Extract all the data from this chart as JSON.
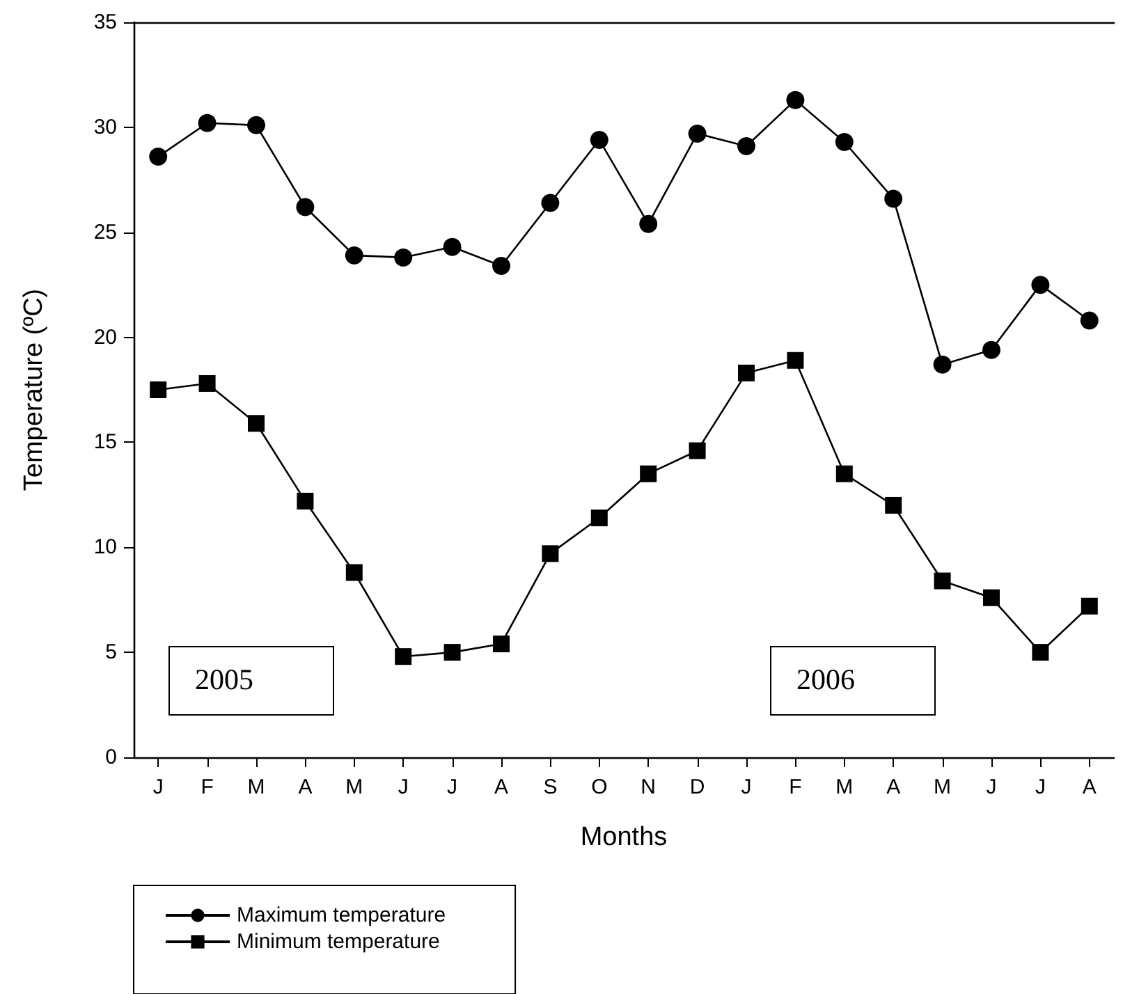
{
  "chart_data": {
    "type": "line",
    "xlabel": "Months",
    "ylabel": "Temperature (ºC)",
    "categories": [
      "J",
      "F",
      "M",
      "A",
      "M",
      "J",
      "J",
      "A",
      "S",
      "O",
      "N",
      "D",
      "J",
      "F",
      "M",
      "A",
      "M",
      "J",
      "J",
      "A"
    ],
    "series": [
      {
        "name": "Maximum temperature",
        "color": "#000000",
        "marker": "circle",
        "values": [
          28.6,
          30.2,
          30.1,
          26.2,
          23.9,
          23.8,
          24.3,
          23.4,
          26.4,
          29.4,
          25.4,
          29.7,
          29.1,
          31.3,
          29.3,
          26.6,
          18.7,
          19.4,
          22.5,
          20.8
        ]
      },
      {
        "name": "Minimum temperature",
        "color": "#000000",
        "marker": "square",
        "values": [
          17.5,
          17.8,
          15.9,
          12.2,
          8.8,
          4.8,
          5.0,
          5.4,
          9.7,
          11.4,
          13.5,
          14.6,
          18.3,
          18.9,
          13.5,
          12.0,
          8.4,
          7.6,
          5.0,
          7.2
        ]
      }
    ],
    "ylim": [
      0,
      35
    ],
    "yticks": [
      0,
      5,
      10,
      15,
      20,
      25,
      30,
      35
    ],
    "annotations": [
      "2005",
      "2006"
    ],
    "legend": "bottom left",
    "line_style": "solid",
    "grid": false
  }
}
